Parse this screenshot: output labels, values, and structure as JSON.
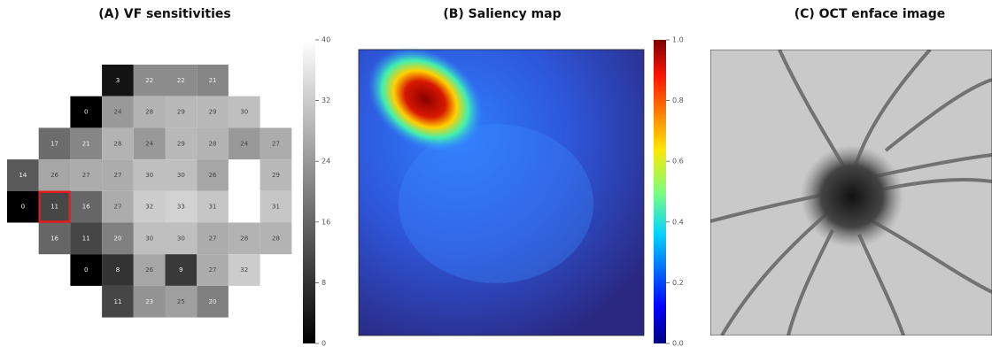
{
  "chart_data": [
    {
      "type": "heatmap",
      "title": "(A) VF sensitivities",
      "values": [
        [
          null,
          null,
          null,
          3,
          22,
          22,
          21,
          null,
          null
        ],
        [
          null,
          null,
          0,
          24,
          28,
          29,
          29,
          30,
          null
        ],
        [
          null,
          17,
          21,
          28,
          24,
          29,
          28,
          24,
          27
        ],
        [
          14,
          26,
          27,
          27,
          30,
          30,
          26,
          null,
          29
        ],
        [
          0,
          11,
          16,
          27,
          32,
          33,
          31,
          null,
          31
        ],
        [
          null,
          16,
          11,
          20,
          30,
          30,
          27,
          28,
          28
        ],
        [
          null,
          null,
          0,
          8,
          26,
          9,
          27,
          32,
          null
        ],
        [
          null,
          null,
          null,
          11,
          23,
          25,
          20,
          null,
          null
        ]
      ],
      "highlight": [
        4,
        1
      ],
      "highlight_color": "#e41a1c",
      "clim": [
        0,
        40
      ],
      "cticks": [
        0,
        8,
        16,
        24,
        32,
        40
      ]
    },
    {
      "type": "image",
      "title": "(B) Saliency map",
      "colormap": "jet",
      "clim": [
        0,
        1
      ],
      "cticks": [
        {
          "value": 0,
          "label": "0.0"
        },
        0.2,
        0.4,
        0.6,
        0.8,
        {
          "value": 1,
          "label": "1.0"
        }
      ]
    },
    {
      "type": "image",
      "title": "(C) OCT enface image",
      "colormap": "gray"
    }
  ]
}
